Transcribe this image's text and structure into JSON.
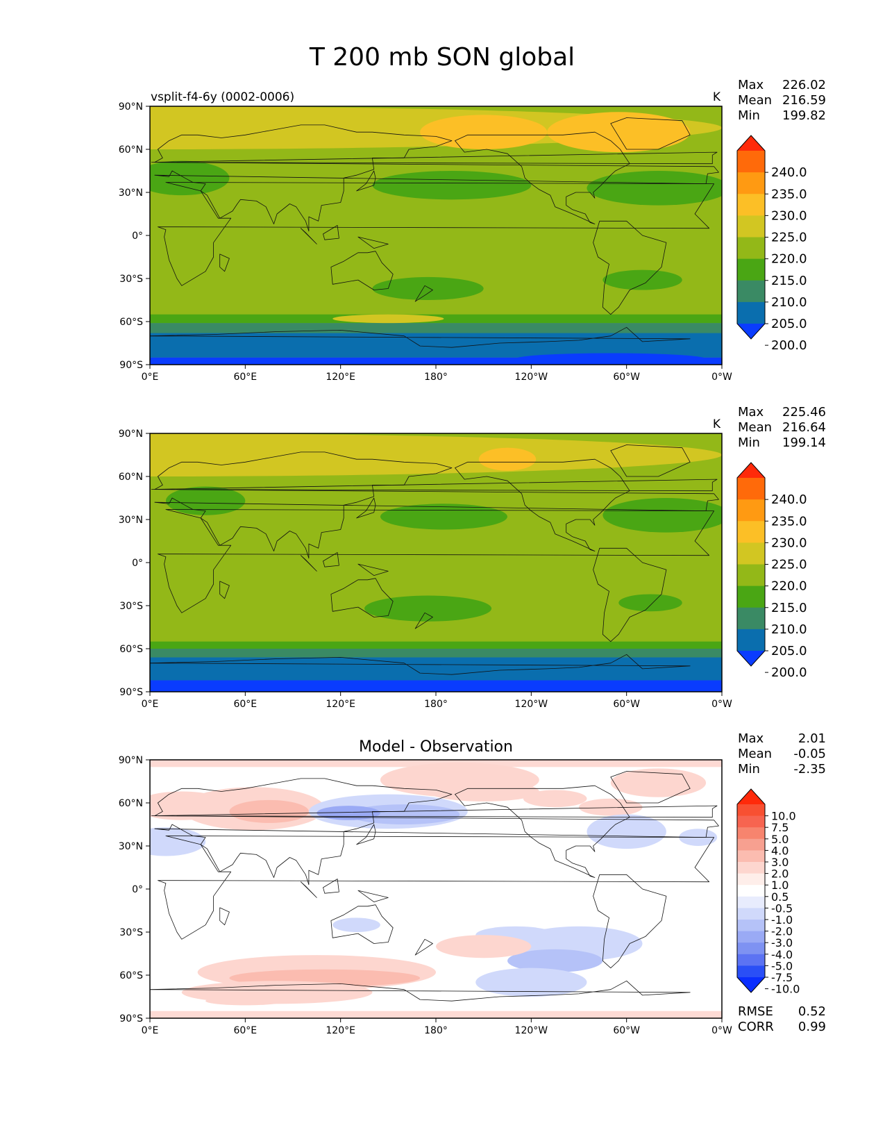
{
  "figure": {
    "title": "T 200 mb SON global"
  },
  "chart_data": [
    {
      "type": "heatmap",
      "name": "model",
      "subtitle": "vsplit-f4-6y (0002-0006)",
      "units": "K",
      "x_ticks": [
        "0°E",
        "60°E",
        "120°E",
        "180°",
        "120°W",
        "60°W",
        "0°W"
      ],
      "y_ticks": [
        "90°N",
        "60°N",
        "30°N",
        "0°",
        "30°S",
        "60°S",
        "90°S"
      ],
      "stats": [
        {
          "label": "Max",
          "value": "226.02"
        },
        {
          "label": "Mean",
          "value": "216.59"
        },
        {
          "label": "Min",
          "value": "199.82"
        }
      ],
      "levels": [
        "240.0",
        "235.0",
        "230.0",
        "225.0",
        "220.0",
        "215.0",
        "210.0",
        "205.0",
        "200.0"
      ],
      "level_colors": [
        "#ff2a0a",
        "#ff6a0a",
        "#ff9a12",
        "#fcbf26",
        "#d2c622",
        "#93b818",
        "#4aa614",
        "#3a8a64",
        "#0a6eae",
        "#0a3cfe"
      ]
    },
    {
      "type": "heatmap",
      "name": "observation",
      "subtitle": "",
      "units": "K",
      "x_ticks": [
        "0°E",
        "60°E",
        "120°E",
        "180°",
        "120°W",
        "60°W",
        "0°W"
      ],
      "y_ticks": [
        "90°N",
        "60°N",
        "30°N",
        "0°",
        "30°S",
        "60°S",
        "90°S"
      ],
      "stats": [
        {
          "label": "Max",
          "value": "225.46"
        },
        {
          "label": "Mean",
          "value": "216.64"
        },
        {
          "label": "Min",
          "value": "199.14"
        }
      ],
      "levels": [
        "240.0",
        "235.0",
        "230.0",
        "225.0",
        "220.0",
        "215.0",
        "210.0",
        "205.0",
        "200.0"
      ],
      "level_colors": [
        "#ff2a0a",
        "#ff6a0a",
        "#ff9a12",
        "#fcbf26",
        "#d2c622",
        "#93b818",
        "#4aa614",
        "#3a8a64",
        "#0a6eae",
        "#0a3cfe"
      ]
    },
    {
      "type": "heatmap",
      "name": "difference",
      "subtitle": "Model - Observation",
      "units": "",
      "x_ticks": [
        "0°E",
        "60°E",
        "120°E",
        "180°",
        "120°W",
        "60°W",
        "0°W"
      ],
      "y_ticks": [
        "90°N",
        "60°N",
        "30°N",
        "0°",
        "30°S",
        "60°S",
        "90°S"
      ],
      "stats": [
        {
          "label": "Max",
          "value": "2.01"
        },
        {
          "label": "Mean",
          "value": "-0.05"
        },
        {
          "label": "Min",
          "value": "-2.35"
        }
      ],
      "levels": [
        "10.0",
        "7.5",
        "5.0",
        "4.0",
        "3.0",
        "2.0",
        "1.0",
        "0.5",
        "-0.5",
        "-1.0",
        "-2.0",
        "-3.0",
        "-4.0",
        "-5.0",
        "-7.5",
        "-10.0"
      ],
      "level_colors": [
        "#ff2a0a",
        "#f85032",
        "#f76450",
        "#f7846e",
        "#f7a090",
        "#fbbcb0",
        "#fdd6cf",
        "#feeeea",
        "#ffffff",
        "#e8ecfd",
        "#d0d9fb",
        "#b5c2f8",
        "#9aaaf5",
        "#7e92f2",
        "#5c73f3",
        "#2a4ff6",
        "#0a2efe"
      ],
      "metrics": [
        {
          "label": "RMSE",
          "value": "0.52"
        },
        {
          "label": "CORR",
          "value": "0.99"
        }
      ]
    }
  ]
}
